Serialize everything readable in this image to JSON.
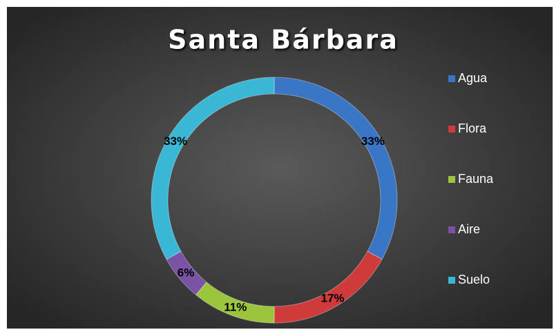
{
  "chart_data": {
    "type": "doughnut",
    "title": "Santa Bárbara",
    "categories": [
      "Agua",
      "Flora",
      "Fauna",
      "Aire",
      "Suelo"
    ],
    "values": [
      33,
      17,
      11,
      6,
      33
    ],
    "value_labels": [
      "33%",
      "17%",
      "11%",
      "6%",
      "33%"
    ],
    "colors": [
      "#3a76c6",
      "#cf3b3b",
      "#9bc53c",
      "#7a52a6",
      "#3bb7d6"
    ],
    "legend": "right"
  }
}
